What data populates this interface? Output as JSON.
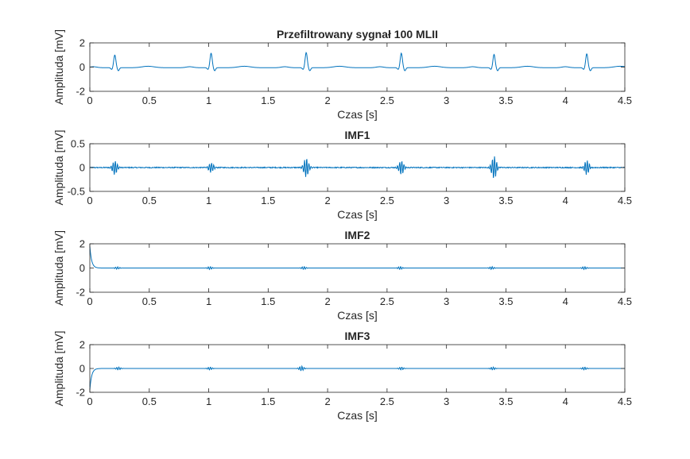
{
  "figure": {
    "background": "#ffffff"
  },
  "chart_data": [
    {
      "type": "line",
      "title": "Przefiltrowany sygnał 100 MLII",
      "xlabel": "Czas [s]",
      "ylabel": "Amplituda [mV]",
      "xlim": [
        0,
        4.5
      ],
      "ylim": [
        -2,
        2
      ],
      "xticks": [
        0,
        0.5,
        1,
        1.5,
        2,
        2.5,
        3,
        3.5,
        4,
        4.5
      ],
      "xtick_labels": [
        "0",
        "0.5",
        "1",
        "1.5",
        "2",
        "2.5",
        "3",
        "3.5",
        "4",
        "4.5"
      ],
      "yticks": [
        -2,
        0,
        2
      ],
      "ytick_labels": [
        "-2",
        "0",
        "2"
      ],
      "grid": false,
      "series_color": "#0072bd",
      "waveform": {
        "kind": "ecg",
        "baseline_mV": -0.05,
        "beat_times_s": [
          0.21,
          1.02,
          1.82,
          2.62,
          3.4,
          4.18
        ],
        "peak_amplitudes_mV": [
          1.05,
          1.2,
          1.25,
          1.2,
          1.1,
          1.15
        ]
      }
    },
    {
      "type": "line",
      "title": "IMF1",
      "xlabel": "Czas [s]",
      "ylabel": "Amplituda [mV]",
      "xlim": [
        0,
        4.5
      ],
      "ylim": [
        -0.5,
        0.5
      ],
      "xticks": [
        0,
        0.5,
        1,
        1.5,
        2,
        2.5,
        3,
        3.5,
        4,
        4.5
      ],
      "xtick_labels": [
        "0",
        "0.5",
        "1",
        "1.5",
        "2",
        "2.5",
        "3",
        "3.5",
        "4",
        "4.5"
      ],
      "yticks": [
        -0.5,
        0,
        0.5
      ],
      "ytick_labels": [
        "-0.5",
        "0",
        "0.5"
      ],
      "grid": false,
      "series_color": "#0072bd",
      "waveform": {
        "kind": "burst",
        "beat_times_s": [
          0.21,
          1.02,
          1.82,
          2.62,
          3.4,
          4.18
        ],
        "burst_amplitudes_mV": [
          0.15,
          0.1,
          0.2,
          0.15,
          0.25,
          0.15
        ],
        "noise_mV": 0.01
      }
    },
    {
      "type": "line",
      "title": "IMF2",
      "xlabel": "Czas [s]",
      "ylabel": "Amplituda [mV]",
      "xlim": [
        0,
        4.5
      ],
      "ylim": [
        -2,
        2
      ],
      "xticks": [
        0,
        0.5,
        1,
        1.5,
        2,
        2.5,
        3,
        3.5,
        4,
        4.5
      ],
      "xtick_labels": [
        "0",
        "0.5",
        "1",
        "1.5",
        "2",
        "2.5",
        "3",
        "3.5",
        "4",
        "4.5"
      ],
      "yticks": [
        -2,
        0,
        2
      ],
      "ytick_labels": [
        "-2",
        "0",
        "2"
      ],
      "grid": false,
      "series_color": "#0072bd",
      "waveform": {
        "kind": "burst",
        "initial_transient_mV": 1.8,
        "beat_times_s": [
          0.23,
          1.01,
          1.8,
          2.61,
          3.38,
          4.16
        ],
        "burst_amplitudes_mV": [
          0.1,
          0.12,
          0.12,
          0.12,
          0.12,
          0.12
        ],
        "noise_mV": 0.0
      }
    },
    {
      "type": "line",
      "title": "IMF3",
      "xlabel": "Czas [s]",
      "ylabel": "Amplituda [mV]",
      "xlim": [
        0,
        4.5
      ],
      "ylim": [
        -2,
        2
      ],
      "xticks": [
        0,
        0.5,
        1,
        1.5,
        2,
        2.5,
        3,
        3.5,
        4,
        4.5
      ],
      "xtick_labels": [
        "0",
        "0.5",
        "1",
        "1.5",
        "2",
        "2.5",
        "3",
        "3.5",
        "4",
        "4.5"
      ],
      "yticks": [
        -2,
        0,
        2
      ],
      "ytick_labels": [
        "-2",
        "0",
        "2"
      ],
      "grid": false,
      "series_color": "#0072bd",
      "waveform": {
        "kind": "burst",
        "initial_transient_mV": -1.8,
        "beat_times_s": [
          0.24,
          1.01,
          1.78,
          2.62,
          3.39,
          4.16
        ],
        "burst_amplitudes_mV": [
          0.12,
          0.12,
          0.2,
          0.12,
          0.12,
          0.12
        ],
        "noise_mV": 0.0
      }
    }
  ]
}
